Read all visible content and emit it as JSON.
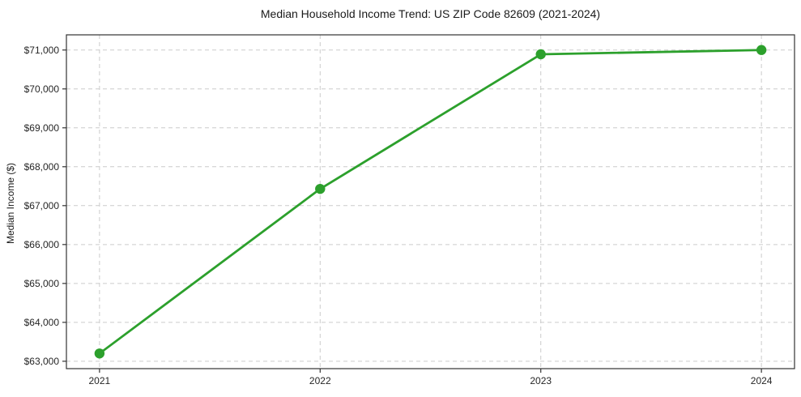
{
  "figure": {
    "background": "#ffffff"
  },
  "chart_data": {
    "type": "line",
    "title": "Median Household Income Trend: US ZIP Code 82609 (2021-2024)",
    "xlabel": "",
    "ylabel": "Median Income ($)",
    "x": [
      2021,
      2022,
      2023,
      2024
    ],
    "series": [
      {
        "name": "Median Income",
        "values": [
          63200,
          67430,
          70890,
          71000
        ]
      }
    ],
    "x_tick_labels": [
      "2021",
      "2022",
      "2023",
      "2024"
    ],
    "y_ticks": [
      63000,
      64000,
      65000,
      66000,
      67000,
      68000,
      69000,
      70000,
      71000
    ],
    "y_tick_labels": [
      "$63,000",
      "$64,000",
      "$65,000",
      "$66,000",
      "$67,000",
      "$68,000",
      "$69,000",
      "$70,000",
      "$71,000"
    ],
    "xlim": [
      2020.85,
      2024.15
    ],
    "ylim": [
      62810,
      71390
    ],
    "grid": true,
    "grid_style": "dashed",
    "legend": "none",
    "colors": {
      "line": "#2ca02c",
      "marker": "#2ca02c",
      "gridline": "#cccccc",
      "spine": "#333333",
      "tick_text": "#262626",
      "title_text": "#1a1a1a"
    }
  }
}
